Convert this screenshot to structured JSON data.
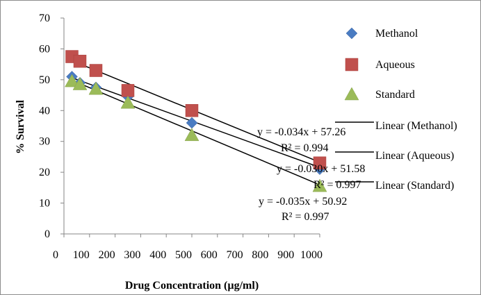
{
  "chart_data": {
    "type": "scatter",
    "xlabel": "Drug Concentration (µg/ml)",
    "ylabel": "% Survival",
    "xlim": [
      0,
      1000
    ],
    "ylim": [
      0,
      70
    ],
    "x_ticks": [
      "0",
      "100",
      "200",
      "300",
      "400",
      "500",
      "600",
      "700",
      "800",
      "900",
      "1000"
    ],
    "y_ticks": [
      "0",
      "10",
      "20",
      "30",
      "40",
      "50",
      "60",
      "70"
    ],
    "grid": false,
    "legend_position": "right",
    "series": [
      {
        "name": "Methanol",
        "marker": "diamond",
        "color": "#4a7cc2",
        "x": [
          31.25,
          62.5,
          125,
          250,
          500,
          1000
        ],
        "y": [
          51,
          49,
          47.5,
          44.5,
          36,
          21
        ]
      },
      {
        "name": "Aqueous",
        "marker": "square",
        "color": "#c0504d",
        "x": [
          31.25,
          62.5,
          125,
          250,
          500,
          1000
        ],
        "y": [
          57.5,
          56,
          53,
          46.5,
          40,
          23
        ]
      },
      {
        "name": "Standard",
        "marker": "triangle",
        "color": "#9bbb59",
        "x": [
          31.25,
          62.5,
          125,
          250,
          500,
          1000
        ],
        "y": [
          49.5,
          48.5,
          47,
          42.5,
          32,
          15.5
        ]
      }
    ],
    "trendlines": [
      {
        "name": "Linear (Methanol)",
        "equation": "y = -0.030x + 51.58",
        "r2": "R² = 0.997",
        "slope": -0.03,
        "intercept": 51.58,
        "color": "#000000"
      },
      {
        "name": "Linear (Aqueous)",
        "equation": "y = -0.034x + 57.26",
        "r2": "R² = 0.994",
        "slope": -0.034,
        "intercept": 57.26,
        "color": "#000000"
      },
      {
        "name": "Linear (Standard)",
        "equation": "y = -0.035x + 50.92",
        "r2": "R² = 0.997",
        "slope": -0.035,
        "intercept": 50.92,
        "color": "#000000"
      }
    ]
  }
}
